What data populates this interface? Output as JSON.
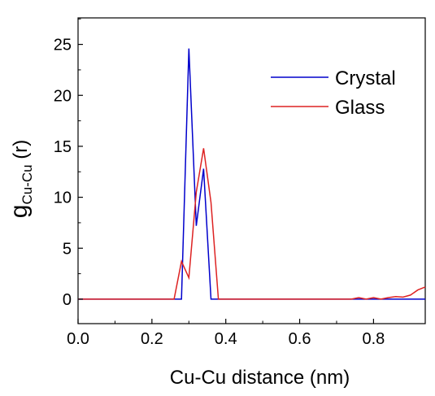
{
  "chart_data": {
    "type": "line",
    "xlabel": "Cu-Cu distance (nm)",
    "ylabel_main": "g",
    "ylabel_sub": "Cu-Cu",
    "ylabel_tail": " (r)",
    "xlim": [
      0.0,
      0.94
    ],
    "ylim": [
      -2.4,
      27.6
    ],
    "xticks": [
      0.0,
      0.2,
      0.4,
      0.6,
      0.8
    ],
    "xtick_labels": [
      "0.0",
      "0.2",
      "0.4",
      "0.6",
      "0.8"
    ],
    "yticks": [
      0,
      5,
      10,
      15,
      20,
      25
    ],
    "ytick_labels": [
      "0",
      "5",
      "10",
      "15",
      "20",
      "25"
    ],
    "grid": false,
    "legend_position": "top-right",
    "series": [
      {
        "name": "Crystal",
        "color": "#0000cc",
        "points": [
          [
            0.0,
            0.0
          ],
          [
            0.28,
            0.0
          ],
          [
            0.3,
            24.6
          ],
          [
            0.32,
            7.2
          ],
          [
            0.34,
            12.8
          ],
          [
            0.36,
            0.0
          ],
          [
            0.94,
            0.0
          ]
        ]
      },
      {
        "name": "Glass",
        "color": "#dd2222",
        "points": [
          [
            0.0,
            0.0
          ],
          [
            0.26,
            0.0
          ],
          [
            0.28,
            3.7
          ],
          [
            0.3,
            2.1
          ],
          [
            0.32,
            10.5
          ],
          [
            0.34,
            14.8
          ],
          [
            0.36,
            9.5
          ],
          [
            0.38,
            0.0
          ],
          [
            0.74,
            0.0
          ],
          [
            0.76,
            0.15
          ],
          [
            0.78,
            0.0
          ],
          [
            0.8,
            0.15
          ],
          [
            0.82,
            0.0
          ],
          [
            0.84,
            0.15
          ],
          [
            0.86,
            0.25
          ],
          [
            0.88,
            0.2
          ],
          [
            0.9,
            0.4
          ],
          [
            0.92,
            0.9
          ],
          [
            0.94,
            1.2
          ]
        ]
      }
    ]
  }
}
